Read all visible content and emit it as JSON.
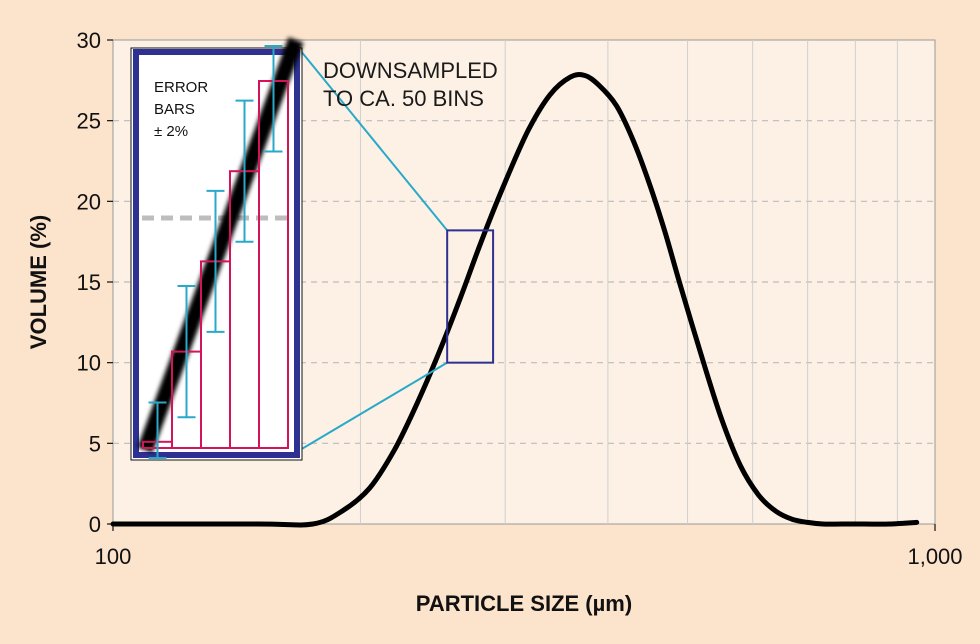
{
  "chart_data": {
    "type": "line",
    "title": "",
    "xlabel": "PARTICLE SIZE (µm)",
    "ylabel": "VOLUME (%)",
    "x_scale": "log",
    "xlim": [
      100,
      1000
    ],
    "ylim": [
      0,
      30
    ],
    "x_tick_labels": [
      {
        "value": 100,
        "label": "100"
      },
      {
        "value": 1000,
        "label": "1,000"
      }
    ],
    "y_ticks": [
      0,
      5,
      10,
      15,
      20,
      25,
      30
    ],
    "grid": "horizontal dashed, vertical minor at log decades",
    "series": [
      {
        "x": [
          100,
          150,
          175,
          190,
          205,
          220,
          235,
          250,
          265,
          280,
          300,
          320,
          340,
          360,
          375,
          390,
          410,
          430,
          450,
          470,
          490,
          520,
          550,
          580,
          610,
          640,
          670,
          700,
          730,
          770,
          820,
          880,
          950
        ],
        "y": [
          0,
          0,
          0,
          0.8,
          2.2,
          4.6,
          7.6,
          10.8,
          14.1,
          17.4,
          21.2,
          24.4,
          26.6,
          27.7,
          27.8,
          27.2,
          25.9,
          23.7,
          21.0,
          18.0,
          14.8,
          10.4,
          6.5,
          3.6,
          1.8,
          0.8,
          0.3,
          0.1,
          0,
          0,
          0,
          0,
          0.1
        ]
      }
    ],
    "zoom_box": {
      "x": [
        255,
        290
      ],
      "y": [
        10,
        18.2
      ]
    },
    "annotations": [
      {
        "lines": [
          "DOWNSAMPLED",
          "TO CA. 50 BINS"
        ]
      }
    ],
    "inset": {
      "label_lines": [
        "ERROR",
        "BARS",
        "± 2%"
      ],
      "bins": [
        {
          "value": 5.5,
          "error": 2.4
        },
        {
          "value": 11.0,
          "error": 4.0
        },
        {
          "value": 16.5,
          "error": 4.3
        },
        {
          "value": 22.0,
          "error": 4.3
        },
        {
          "value": 27.5,
          "error": 4.3
        }
      ]
    },
    "colors": {
      "curve": "#000000",
      "zoom_box": "#2e3192",
      "connector": "#29a9c9",
      "inset_frame": "#2e3192",
      "inset_bars": "#d4145a",
      "error_bars": "#29a9c9",
      "grid": "#bbbbbb",
      "plot_bg": "#fdf1e5",
      "page_bg": "#fbe3cc"
    }
  }
}
